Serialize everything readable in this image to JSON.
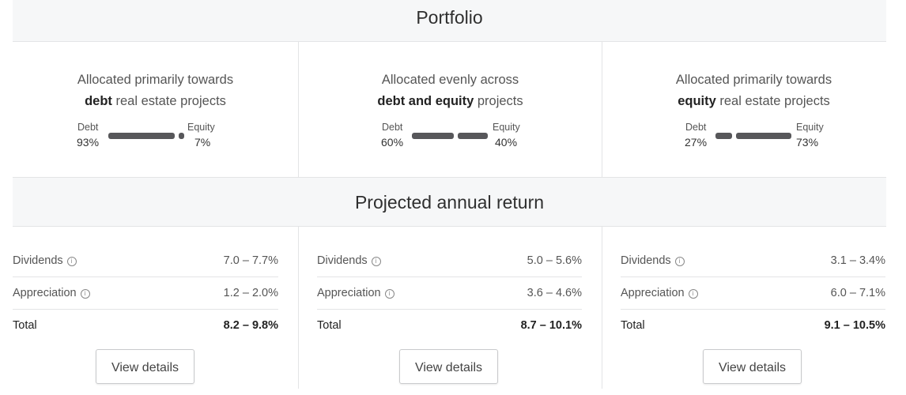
{
  "headers": {
    "portfolio": "Portfolio",
    "returns": "Projected annual return"
  },
  "colors": {
    "bar": "#57575a",
    "band": "#f6f7f8",
    "divider": "#e3e4e6"
  },
  "labels": {
    "debt": "Debt",
    "equity": "Equity",
    "dividends": "Dividends",
    "appreciation": "Appreciation",
    "total": "Total",
    "info_icon": "info-icon"
  },
  "columns": [
    {
      "line1": "Allocated primarily towards",
      "emph": "debt",
      "rest": " real estate projects",
      "debt_pct": "93%",
      "equity_pct": "7%",
      "debt_share": 0.93,
      "dividends": "7.0 – 7.7%",
      "appreciation": "1.2 – 2.0%",
      "total": "8.2 – 9.8%",
      "button": "View details"
    },
    {
      "line1": "Allocated evenly across",
      "emph": "debt and equity",
      "rest": " projects",
      "debt_pct": "60%",
      "equity_pct": "40%",
      "debt_share": 0.6,
      "dividends": "5.0 – 5.6%",
      "appreciation": "3.6 – 4.6%",
      "total": "8.7 – 10.1%",
      "button": "View details"
    },
    {
      "line1": "Allocated primarily towards",
      "emph": "equity",
      "rest": " real estate projects",
      "debt_pct": "27%",
      "equity_pct": "73%",
      "debt_share": 0.27,
      "dividends": "3.1 – 3.4%",
      "appreciation": "6.0 – 7.1%",
      "total": "9.1 – 10.5%",
      "button": "View details"
    }
  ]
}
